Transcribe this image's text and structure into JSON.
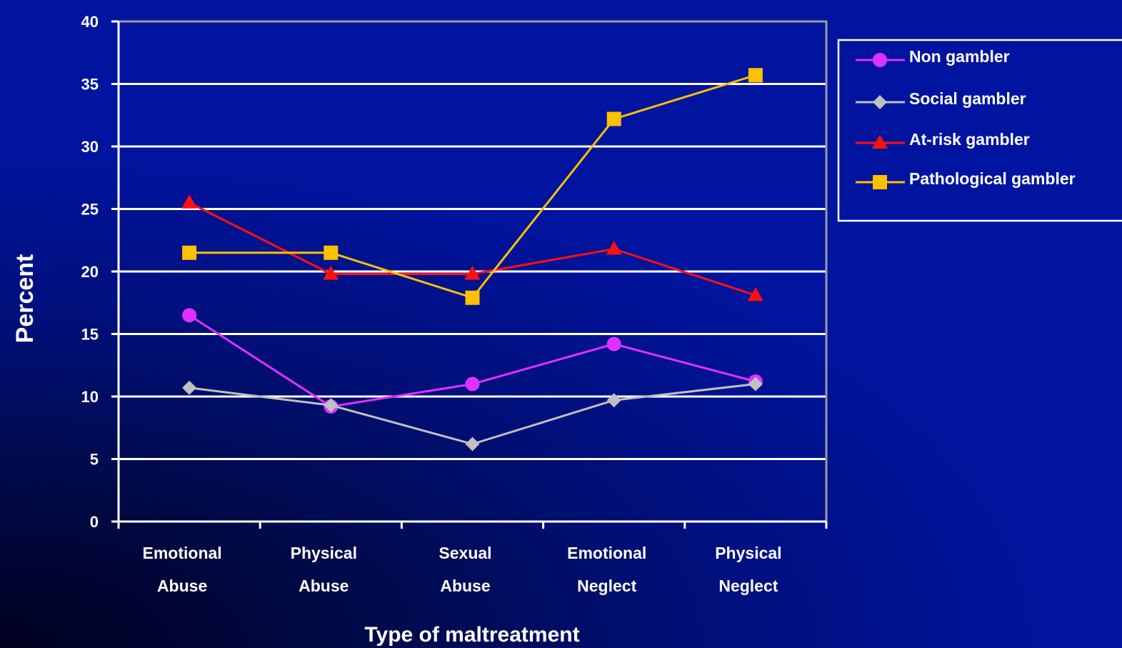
{
  "chart_data": {
    "type": "line",
    "title": "",
    "xlabel": "Type of maltreatment",
    "ylabel": "Percent",
    "ylim": [
      0,
      40
    ],
    "yticks": [
      0,
      5,
      10,
      15,
      20,
      25,
      30,
      35,
      40
    ],
    "grid": true,
    "legend_position": "right",
    "categories": [
      [
        "Emotional",
        "Abuse"
      ],
      [
        "Physical",
        "Abuse"
      ],
      [
        "Sexual",
        "Abuse"
      ],
      [
        "Emotional",
        "Neglect"
      ],
      [
        "Physical",
        "Neglect"
      ]
    ],
    "series": [
      {
        "name": "Non gambler",
        "color": "#e030ff",
        "marker": "circle",
        "values": [
          16.5,
          9.2,
          11.0,
          14.2,
          11.2
        ]
      },
      {
        "name": "Social gambler",
        "color": "#c0c0c0",
        "marker": "diamond",
        "values": [
          10.7,
          9.3,
          6.2,
          9.7,
          11.0
        ]
      },
      {
        "name": "At-risk gambler",
        "color": "#ff1010",
        "marker": "triangle",
        "values": [
          25.5,
          19.8,
          19.8,
          21.8,
          18.1
        ]
      },
      {
        "name": "Pathological gambler",
        "color": "#ffc000",
        "marker": "square",
        "values": [
          21.5,
          21.5,
          17.9,
          32.2,
          35.7
        ]
      }
    ]
  }
}
